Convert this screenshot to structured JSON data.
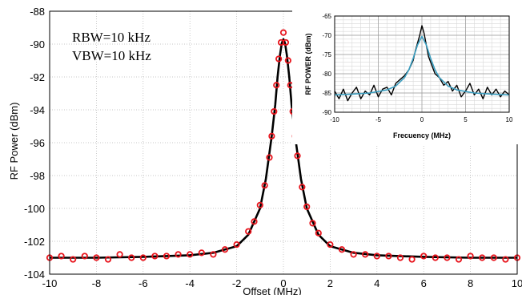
{
  "chart_data": [
    {
      "type": "scatter",
      "title": "",
      "xlabel": "Offset (MHz)",
      "ylabel": "RF Power (dBm)",
      "xlim": [
        -10,
        10
      ],
      "ylim": [
        -104,
        -88
      ],
      "xticks": [
        "-10",
        "-8",
        "-6",
        "-4",
        "-2",
        "0",
        "2",
        "4",
        "6",
        "8",
        "10"
      ],
      "yticks": [
        "-88",
        "-90",
        "-92",
        "-94",
        "-96",
        "-98",
        "-100",
        "-102",
        "-104"
      ],
      "grid": true,
      "annotations": [
        "RBW=10 kHz",
        "VBW=10 kHz"
      ],
      "series": [
        {
          "kind": "markers",
          "color": "#e8141c",
          "x": [
            -10,
            -9.5,
            -9,
            -8.5,
            -8,
            -7.5,
            -7,
            -6.5,
            -6,
            -5.5,
            -5,
            -4.5,
            -4,
            -3.5,
            -3,
            -2.5,
            -2,
            -1.5,
            -1.25,
            -1,
            -0.8,
            -0.6,
            -0.5,
            -0.4,
            -0.3,
            -0.2,
            -0.1,
            0,
            0.1,
            0.2,
            0.3,
            0.4,
            0.5,
            0.6,
            0.8,
            1,
            1.25,
            1.5,
            2,
            2.5,
            3,
            3.5,
            4,
            4.5,
            5,
            5.5,
            6,
            6.5,
            7,
            7.5,
            8,
            8.5,
            9,
            9.5,
            10
          ],
          "y": [
            -103.0,
            -102.9,
            -103.1,
            -102.9,
            -103.0,
            -103.1,
            -102.8,
            -103.0,
            -103.0,
            -102.9,
            -102.9,
            -102.8,
            -102.8,
            -102.7,
            -102.8,
            -102.5,
            -102.2,
            -101.4,
            -100.8,
            -99.8,
            -98.6,
            -96.9,
            -95.6,
            -94.1,
            -92.5,
            -90.9,
            -89.9,
            -89.3,
            -89.9,
            -91.0,
            -92.5,
            -94.1,
            -95.6,
            -96.8,
            -98.7,
            -99.9,
            -100.9,
            -101.5,
            -102.2,
            -102.5,
            -102.8,
            -102.8,
            -102.9,
            -102.9,
            -103.0,
            -103.1,
            -102.9,
            -103.0,
            -103.0,
            -103.1,
            -102.9,
            -103.0,
            -103.0,
            -103.1,
            -103.0
          ]
        },
        {
          "kind": "fit",
          "color": "#000000",
          "x": [
            -10,
            -8,
            -6,
            -4,
            -3,
            -2,
            -1.5,
            -1,
            -0.75,
            -0.5,
            -0.35,
            -0.25,
            -0.15,
            -0.07,
            0,
            0.07,
            0.15,
            0.25,
            0.35,
            0.5,
            0.75,
            1,
            1.5,
            2,
            3,
            4,
            6,
            8,
            10
          ],
          "y": [
            -103.0,
            -103.0,
            -102.95,
            -102.85,
            -102.7,
            -102.3,
            -101.6,
            -100.0,
            -98.2,
            -95.6,
            -93.7,
            -92.0,
            -90.7,
            -89.95,
            -89.7,
            -89.95,
            -90.7,
            -92.0,
            -93.7,
            -95.6,
            -98.2,
            -100.0,
            -101.6,
            -102.3,
            -102.7,
            -102.85,
            -102.95,
            -103.0,
            -103.0
          ]
        }
      ]
    },
    {
      "type": "line",
      "title": "",
      "xlabel": "Frecuency  (MHz)",
      "ylabel": "RF  POWER  (dBm)",
      "xlim": [
        -10,
        10
      ],
      "ylim": [
        -90,
        -65
      ],
      "xticks": [
        "-10",
        "-5",
        "0",
        "5",
        "10"
      ],
      "yticks": [
        "-65",
        "-70",
        "-75",
        "-80",
        "-85",
        "-90"
      ],
      "grid": true,
      "series": [
        {
          "kind": "measured",
          "color": "#000000",
          "x": [
            -10,
            -9.5,
            -9,
            -8.5,
            -8,
            -7.5,
            -7,
            -6.5,
            -6,
            -5.5,
            -5,
            -4.5,
            -4,
            -3.5,
            -3,
            -2.5,
            -2,
            -1.5,
            -1,
            -0.75,
            -0.5,
            -0.25,
            0,
            0.25,
            0.5,
            0.75,
            1,
            1.5,
            2,
            2.5,
            3,
            3.5,
            4,
            4.5,
            5,
            5.5,
            6,
            6.5,
            7,
            7.5,
            8,
            8.5,
            9,
            9.5,
            10
          ],
          "y": [
            -84.5,
            -86.5,
            -84.0,
            -87.0,
            -85.0,
            -83.5,
            -86.5,
            -84.5,
            -85.5,
            -83.0,
            -86.0,
            -84.0,
            -83.5,
            -85.5,
            -82.5,
            -81.5,
            -80.5,
            -79.0,
            -76.5,
            -74.0,
            -72.0,
            -70.0,
            -67.5,
            -69.5,
            -72.5,
            -75.5,
            -77.0,
            -80.0,
            -81.0,
            -83.0,
            -82.0,
            -84.5,
            -83.0,
            -86.0,
            -84.5,
            -82.5,
            -85.5,
            -84.0,
            -86.5,
            -83.5,
            -85.5,
            -84.0,
            -86.0,
            -84.5,
            -85.5
          ]
        },
        {
          "kind": "fit",
          "color": "#3a9ec0",
          "x": [
            -10,
            -8,
            -6,
            -4,
            -3,
            -2,
            -1.5,
            -1,
            -0.5,
            0,
            0.5,
            1,
            1.5,
            2,
            3,
            4,
            6,
            8,
            10
          ],
          "y": [
            -85.5,
            -85.3,
            -85.0,
            -84.2,
            -83.2,
            -81.0,
            -79.0,
            -76.0,
            -72.5,
            -70.3,
            -72.5,
            -76.0,
            -79.0,
            -81.0,
            -83.2,
            -84.2,
            -85.0,
            -85.3,
            -85.5
          ]
        }
      ]
    }
  ]
}
